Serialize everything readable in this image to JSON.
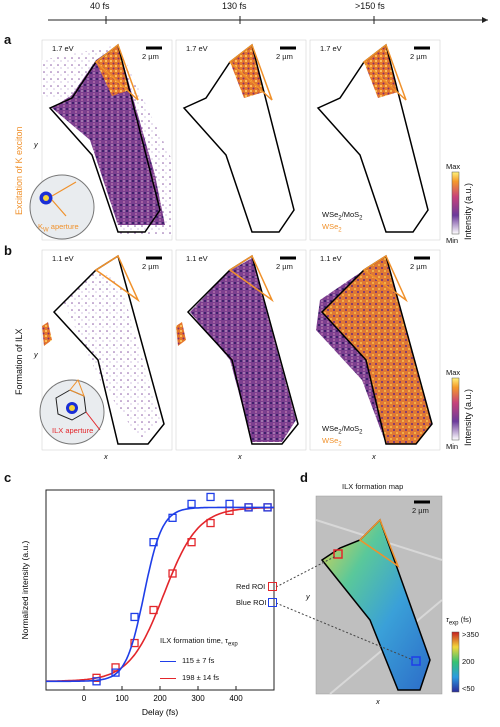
{
  "timeline": {
    "ticks": [
      "40 fs",
      "130 fs",
      ">150 fs"
    ]
  },
  "panel_a": {
    "letter": "a",
    "row_label": "Excitation of  K exciton",
    "axis_y": "y",
    "images": [
      {
        "energy": "1.7 eV",
        "scale": "2 µm"
      },
      {
        "energy": "1.7 eV",
        "scale": "2 µm"
      },
      {
        "energy": "1.7 eV",
        "scale": "2 µm"
      }
    ],
    "inset_label": "K",
    "inset_sub": "W",
    "inset_text": " aperture",
    "legend_black": "WSe",
    "legend_black_sub": "2",
    "legend_black_rest": "/MoS",
    "legend_black_sub2": "2",
    "legend_orange": "WSe",
    "legend_orange_sub": "2",
    "colorbar": {
      "max": "Max",
      "min": "Min",
      "label": "Intensity (a.u.)"
    }
  },
  "panel_b": {
    "letter": "b",
    "row_label": "Formation of ILX",
    "axis_y": "y",
    "axis_x": "x",
    "images": [
      {
        "energy": "1.1 eV",
        "scale": "2 µm"
      },
      {
        "energy": "1.1 eV",
        "scale": "2 µm"
      },
      {
        "energy": "1.1 eV",
        "scale": "2 µm"
      }
    ],
    "inset_text": "ILX aperture",
    "legend_black": "WSe",
    "legend_black_sub": "2",
    "legend_black_rest": "/MoS",
    "legend_black_sub2": "2",
    "legend_orange": "WSe",
    "legend_orange_sub": "2",
    "colorbar": {
      "max": "Max",
      "min": "Min",
      "label": "Intensity (a.u.)"
    }
  },
  "panel_c": {
    "letter": "c",
    "roi_red": "Red ROI",
    "roi_blue": "Blue ROI",
    "legend_title": "ILX formation time, τ",
    "legend_title_sub": "exp",
    "legend_blue": "115 ± 7 fs",
    "legend_red": "198 ± 14 fs"
  },
  "panel_d": {
    "letter": "d",
    "title": "ILX formation map",
    "scale": "2 µm",
    "axis_y": "y",
    "axis_x": "x",
    "colorbar": {
      "label": "τ",
      "label_sub": "exp",
      "label_rest": " (fs)",
      "ticks": [
        ">350",
        "200",
        "<50"
      ]
    }
  },
  "chart_data": {
    "type": "scatter",
    "xlabel": "Delay (fs)",
    "ylabel": "Normalized intensity (a.u.)",
    "xlim": [
      -100,
      500
    ],
    "ylim": [
      -0.05,
      1.1
    ],
    "xticks": [
      0,
      100,
      200,
      300,
      400
    ],
    "series": [
      {
        "name": "Red ROI",
        "color": "#e3262b",
        "tau_fs": 198,
        "x": [
          33,
          83,
          133,
          183,
          233,
          283,
          333,
          383,
          433,
          483
        ],
        "y": [
          0.02,
          0.08,
          0.22,
          0.41,
          0.62,
          0.8,
          0.91,
          0.98,
          1.0,
          1.0
        ],
        "fit_t0": 210,
        "fit_w": 45
      },
      {
        "name": "Blue ROI",
        "color": "#1f3ee8",
        "tau_fs": 115,
        "x": [
          33,
          83,
          133,
          183,
          233,
          283,
          333,
          383,
          433,
          483
        ],
        "y": [
          0.0,
          0.05,
          0.37,
          0.8,
          0.94,
          1.02,
          1.06,
          1.02,
          1.0,
          1.0
        ],
        "fit_t0": 158,
        "fit_w": 24
      }
    ]
  }
}
